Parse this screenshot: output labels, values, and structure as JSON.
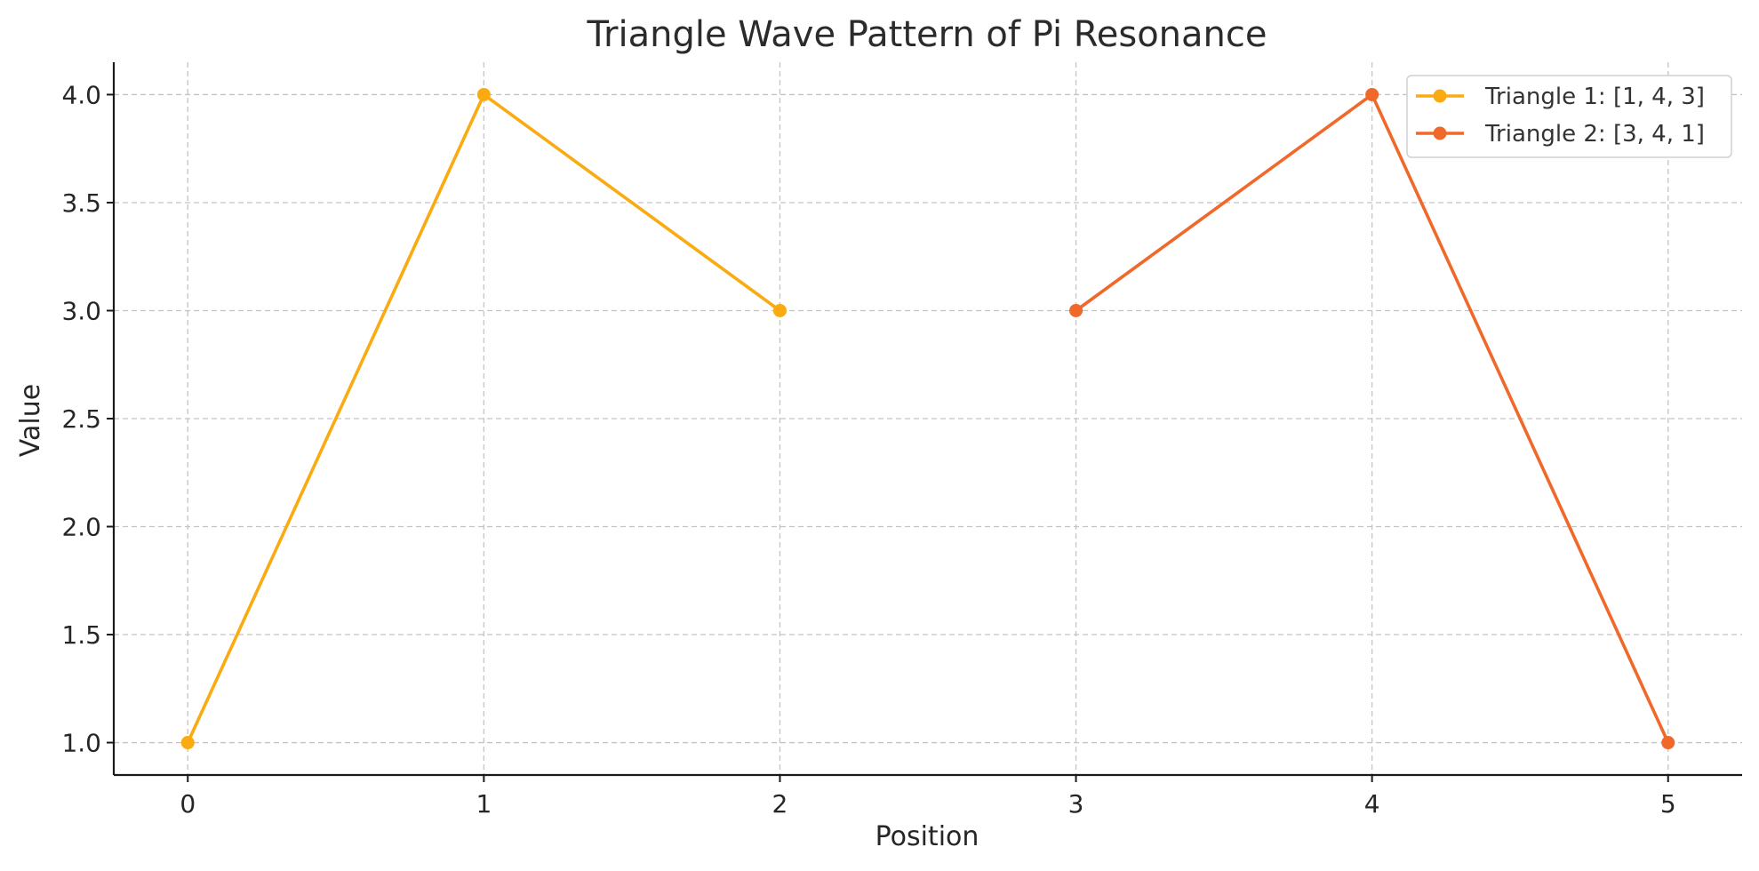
{
  "chart_data": {
    "type": "line",
    "title": "Triangle Wave Pattern of Pi Resonance",
    "xlabel": "Position",
    "ylabel": "Value",
    "xlim": [
      -0.25,
      5.25
    ],
    "ylim": [
      0.85,
      4.15
    ],
    "x_ticks": [
      0,
      1,
      2,
      3,
      4,
      5
    ],
    "x_tick_labels": [
      "0",
      "1",
      "2",
      "3",
      "4",
      "5"
    ],
    "y_ticks": [
      1.0,
      1.5,
      2.0,
      2.5,
      3.0,
      3.5,
      4.0
    ],
    "y_tick_labels": [
      "1.0",
      "1.5",
      "2.0",
      "2.5",
      "3.0",
      "3.5",
      "4.0"
    ],
    "grid": true,
    "legend_position": "top-right",
    "series": [
      {
        "name": "Triangle 1: [1, 4, 3]",
        "color": "#f9ab11",
        "marker": "circle",
        "x": [
          0,
          1,
          2
        ],
        "y": [
          1,
          4,
          3
        ]
      },
      {
        "name": "Triangle 2: [3, 4, 1]",
        "color": "#f0692a",
        "marker": "circle",
        "x": [
          3,
          4,
          5
        ],
        "y": [
          3,
          4,
          1
        ]
      }
    ]
  }
}
